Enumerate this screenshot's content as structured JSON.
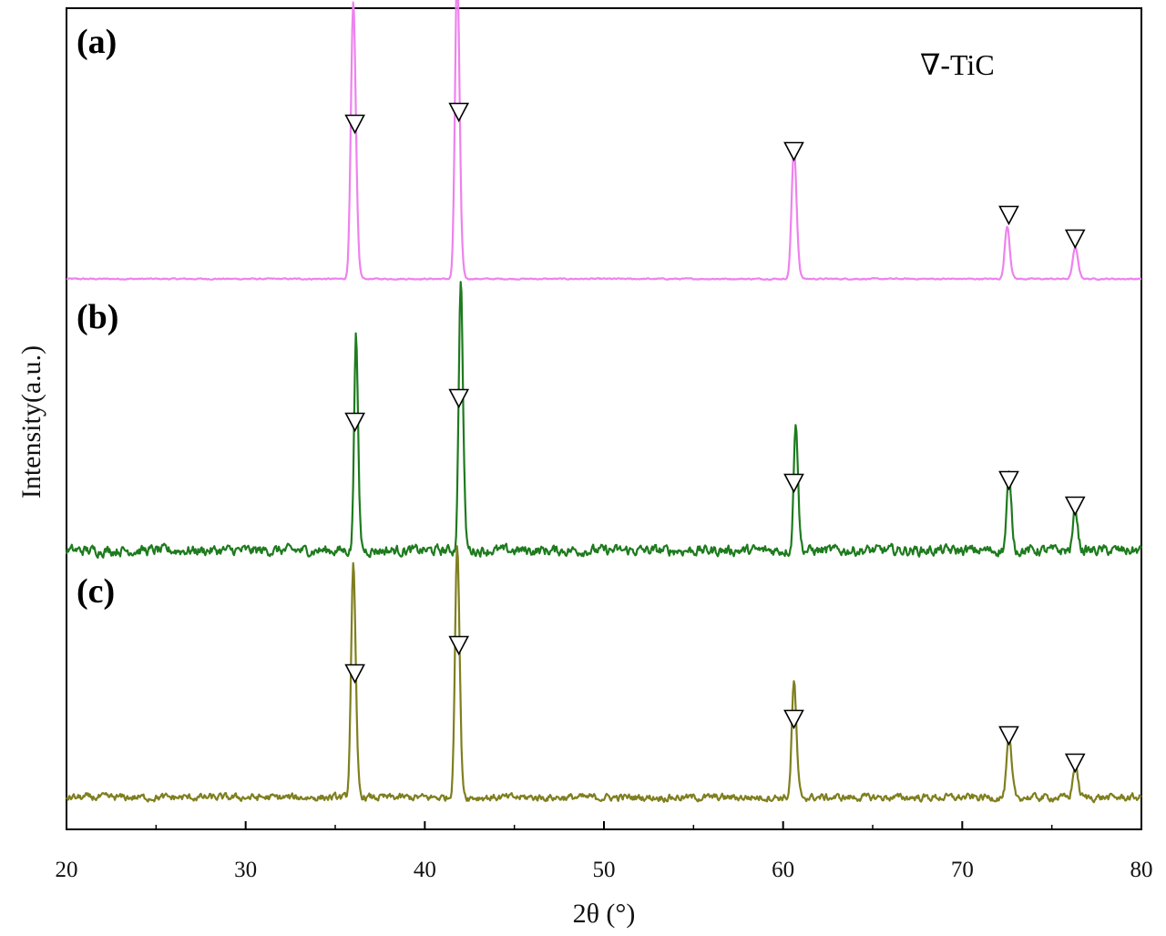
{
  "chart_data": {
    "type": "line",
    "xlabel": "2θ (°)",
    "ylabel": "Intensity(a.u.)",
    "xlim": [
      20,
      80
    ],
    "xticks": [
      "20",
      "30",
      "40",
      "50",
      "60",
      "70",
      "80"
    ],
    "legend": {
      "symbol": "∇",
      "label": "∇-TiC",
      "placement": "top-right"
    },
    "marker_positions": [
      36.1,
      41.9,
      60.6,
      72.6,
      76.3
    ],
    "series": [
      {
        "label": "(a)",
        "color": "#ee82ee",
        "noise": 0.004,
        "peaks": [
          {
            "x": 36.0,
            "height": 0.89,
            "width": 0.13
          },
          {
            "x": 41.8,
            "height": 1.0,
            "width": 0.12
          },
          {
            "x": 60.6,
            "height": 0.42,
            "width": 0.13
          },
          {
            "x": 72.5,
            "height": 0.17,
            "width": 0.13
          },
          {
            "x": 76.3,
            "height": 0.1,
            "width": 0.14
          }
        ]
      },
      {
        "label": "(b)",
        "color": "#1e7b1e",
        "noise": 0.035,
        "peaks": [
          {
            "x": 36.15,
            "height": 0.74,
            "width": 0.1
          },
          {
            "x": 42.0,
            "height": 0.92,
            "width": 0.11
          },
          {
            "x": 60.7,
            "height": 0.44,
            "width": 0.11
          },
          {
            "x": 72.6,
            "height": 0.25,
            "width": 0.12
          },
          {
            "x": 76.3,
            "height": 0.14,
            "width": 0.12
          }
        ]
      },
      {
        "label": "(c)",
        "color": "#7f7f1f",
        "noise": 0.025,
        "peaks": [
          {
            "x": 36.0,
            "height": 0.8,
            "width": 0.12
          },
          {
            "x": 41.8,
            "height": 0.87,
            "width": 0.12
          },
          {
            "x": 60.6,
            "height": 0.4,
            "width": 0.12
          },
          {
            "x": 72.6,
            "height": 0.2,
            "width": 0.13
          },
          {
            "x": 76.3,
            "height": 0.11,
            "width": 0.13
          }
        ]
      }
    ]
  }
}
